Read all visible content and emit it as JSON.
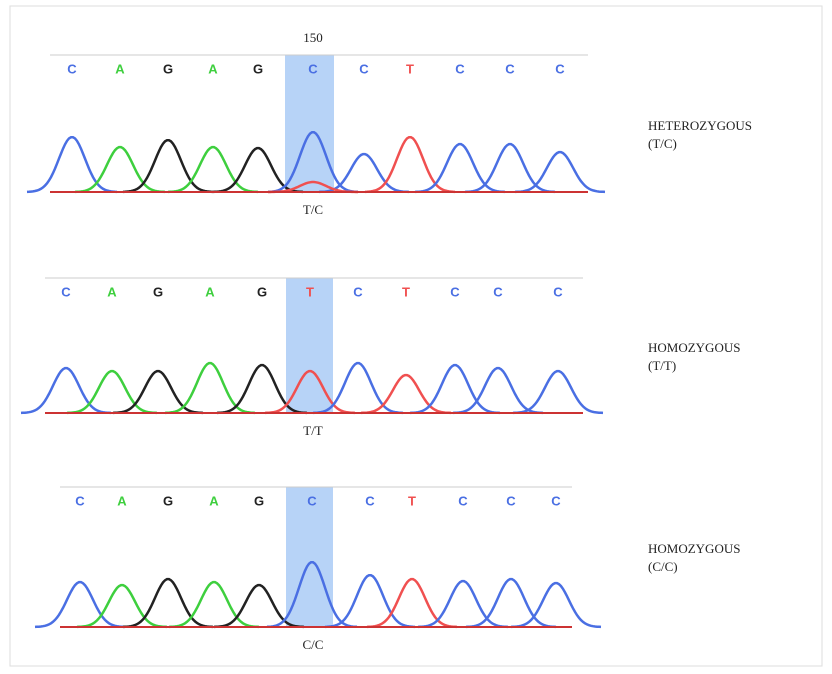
{
  "panels": [
    {
      "position": "150",
      "bases": [
        "C",
        "A",
        "G",
        "A",
        "G",
        "C",
        "C",
        "T",
        "C",
        "C",
        "C"
      ],
      "call": "T/C",
      "genotype": [
        "HETEROZYGOUS",
        "(T/C)"
      ]
    },
    {
      "bases": [
        "C",
        "A",
        "G",
        "A",
        "G",
        "T",
        "C",
        "T",
        "C",
        "C",
        "C"
      ],
      "call": "T/T",
      "genotype": [
        "HOMOZYGOUS",
        "(T/T)"
      ]
    },
    {
      "bases": [
        "C",
        "A",
        "G",
        "A",
        "G",
        "C",
        "C",
        "T",
        "C",
        "C",
        "C"
      ],
      "call": "C/C",
      "genotype": [
        "HOMOZYGOUS",
        "(C/C)"
      ]
    }
  ]
}
